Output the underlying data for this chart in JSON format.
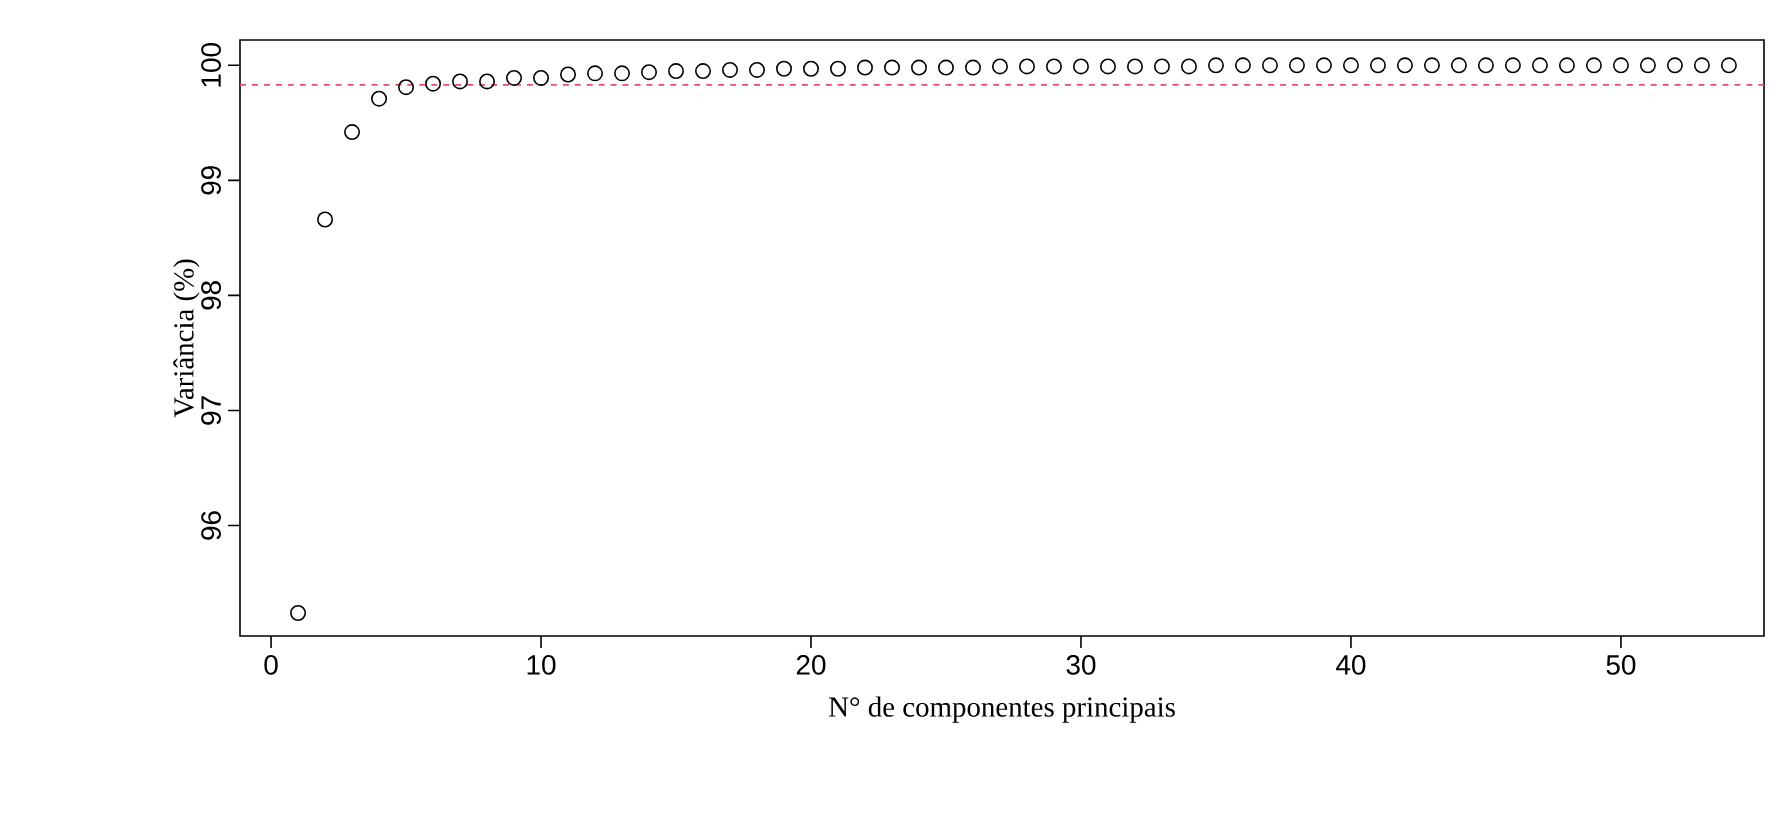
{
  "chart_data": {
    "type": "scatter",
    "xlabel": "N° de componentes principais",
    "ylabel": "Variância (%)",
    "x": [
      1,
      2,
      3,
      4,
      5,
      6,
      7,
      8,
      9,
      10,
      11,
      12,
      13,
      14,
      15,
      16,
      17,
      18,
      19,
      20,
      21,
      22,
      23,
      24,
      25,
      26,
      27,
      28,
      29,
      30,
      31,
      32,
      33,
      34,
      35,
      36,
      37,
      38,
      39,
      40,
      41,
      42,
      43,
      44,
      45,
      46,
      47,
      48,
      49,
      50,
      51,
      52,
      53,
      54
    ],
    "values": [
      95.24,
      98.66,
      99.42,
      99.71,
      99.81,
      99.84,
      99.86,
      99.86,
      99.89,
      99.89,
      99.92,
      99.93,
      99.93,
      99.94,
      99.95,
      99.95,
      99.96,
      99.96,
      99.97,
      99.97,
      99.97,
      99.98,
      99.98,
      99.98,
      99.98,
      99.98,
      99.99,
      99.99,
      99.99,
      99.99,
      99.99,
      99.99,
      99.99,
      99.99,
      100,
      100,
      100,
      100,
      100,
      100,
      100,
      100,
      100,
      100,
      100,
      100,
      100,
      100,
      100,
      100,
      100,
      100,
      100,
      100
    ],
    "color": "#000000",
    "marker": "circle",
    "xlim": [
      -1.15,
      55.3
    ],
    "ylim": [
      95.04,
      100.22
    ],
    "xticks": [
      0,
      10,
      20,
      30,
      40,
      50
    ],
    "yticks": [
      96,
      97,
      98,
      99,
      100
    ],
    "ref_lines": [
      {
        "axis": "y",
        "value": 99.83,
        "color": "#df536b",
        "line_style": "dashed"
      }
    ],
    "grid": false
  }
}
